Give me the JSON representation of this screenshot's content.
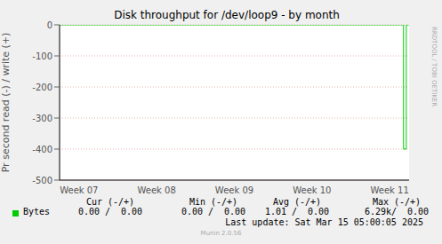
{
  "chart_data": {
    "type": "line",
    "title": "Disk throughput for /dev/loop9 - by month",
    "y_label": "Pr second read (-) / write (+)",
    "categories": [
      null,
      null,
      null,
      null,
      null,
      null,
      null,
      "Week 07",
      null,
      null,
      null,
      null,
      null,
      null,
      null,
      null,
      null,
      null,
      null,
      null,
      null,
      null,
      null,
      null,
      null,
      null,
      null,
      null,
      null,
      null,
      null,
      null,
      null,
      null,
      null,
      "Week 08",
      null,
      null,
      null,
      null,
      null,
      null,
      null,
      null,
      null,
      null,
      null,
      null,
      null,
      null,
      null,
      null,
      null,
      null,
      null,
      null,
      null,
      null,
      null,
      null,
      null,
      null,
      null,
      "Week 09",
      null,
      null,
      null,
      null,
      null,
      null,
      null,
      null,
      null,
      null,
      null,
      null,
      null,
      null,
      null,
      null,
      null,
      null,
      null,
      null,
      null,
      null,
      null,
      null,
      null,
      null,
      null,
      "Week 10",
      null,
      null,
      null,
      null,
      null,
      null,
      null,
      null,
      null,
      null,
      null,
      null,
      null,
      null,
      null,
      null,
      null,
      null,
      null,
      null,
      null,
      null,
      null,
      null,
      null,
      null,
      null,
      "Week 11",
      null,
      null,
      null,
      null,
      null,
      null,
      null
    ],
    "series": [
      {
        "name": "Bytes",
        "color": "#00cc00",
        "values": [
          0,
          0,
          0,
          0,
          0,
          0,
          0,
          0,
          0,
          0,
          0,
          0,
          0,
          0,
          0,
          0,
          0,
          0,
          0,
          0,
          0,
          0,
          0,
          0,
          0,
          0,
          0,
          0,
          0,
          0,
          0,
          0,
          0,
          0,
          0,
          0,
          0,
          0,
          0,
          0,
          0,
          0,
          0,
          0,
          0,
          0,
          0,
          0,
          0,
          0,
          0,
          0,
          0,
          0,
          0,
          0,
          0,
          0,
          0,
          0,
          0,
          0,
          0,
          0,
          0,
          0,
          0,
          0,
          0,
          0,
          0,
          0,
          0,
          0,
          0,
          0,
          0,
          0,
          0,
          0,
          0,
          0,
          0,
          0,
          0,
          0,
          0,
          0,
          0,
          0,
          0,
          0,
          0,
          0,
          0,
          0,
          0,
          0,
          0,
          0,
          0,
          0,
          0,
          0,
          0,
          0,
          0,
          0,
          0,
          0,
          0,
          0,
          0,
          0,
          0,
          0,
          0,
          0,
          0,
          0,
          0,
          0,
          0,
          0,
          -400,
          0,
          0
        ]
      }
    ],
    "ylim": [
      -500,
      0
    ],
    "yticks": [
      -500,
      -400,
      -300,
      -200,
      -100,
      0
    ],
    "grid": true,
    "line_style": "step",
    "legend_table": {
      "headers": [
        "Cur (-/+)",
        "Min (-/+)",
        "Avg (-/+)",
        "Max (-/+)"
      ],
      "rows": [
        {
          "name": "Bytes",
          "cells": [
            "0.00 /  0.00",
            "0.00 /  0.00",
            "1.01 /  0.00",
            "6.29k/  0.00"
          ]
        }
      ]
    },
    "footer": "Last update: Sat Mar 15 05:00:05 2025",
    "credit": "Munin 2.0.56",
    "side_text": "RRDTOOL / TOBI OETIKER"
  }
}
